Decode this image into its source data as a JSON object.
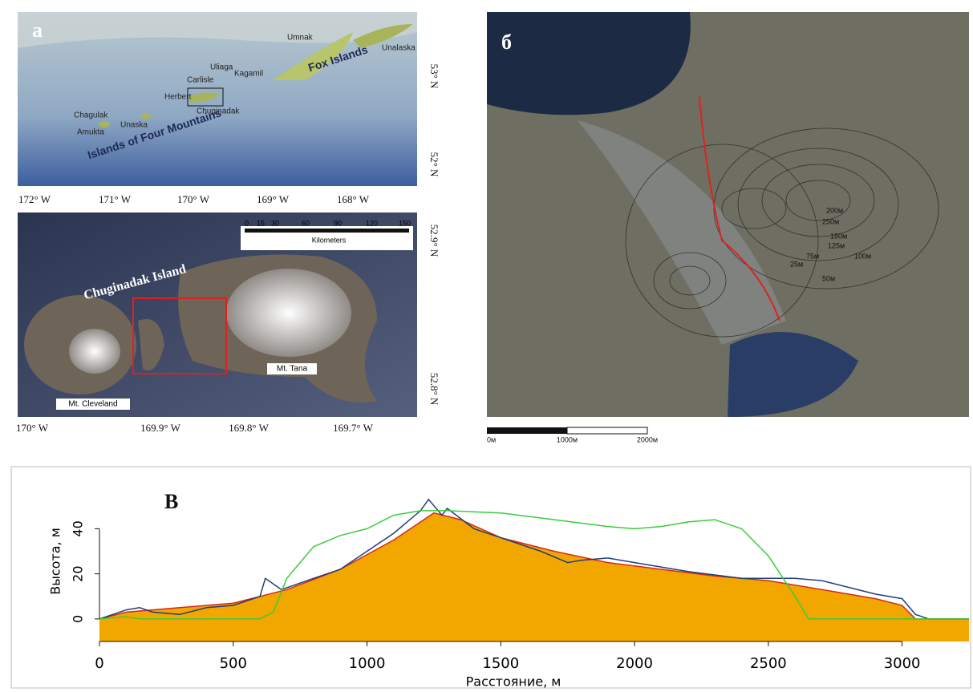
{
  "panels": {
    "a": {
      "label": "a",
      "islands": [
        "Umnak",
        "Unalaska",
        "Uliaga",
        "Kagamil",
        "Carlisle",
        "Herbert",
        "Chuginadak",
        "Chagulak",
        "Amukta",
        "Unaska"
      ],
      "groups": [
        "Fox Islands",
        "Islands of Four Mountains"
      ],
      "lon_ticks": [
        "172° W",
        "171° W",
        "170° W",
        "169° W",
        "168° W"
      ],
      "lat_ticks": [
        "53° N",
        "52° N"
      ],
      "inset": {
        "scale_ticks": [
          "0",
          "15",
          "30",
          "60",
          "90",
          "120",
          "150"
        ],
        "scale_unit": "Kilometers",
        "island": "Chuginadak Island",
        "volcanoes": [
          "Mt. Tana",
          "Mt. Cleveland"
        ],
        "lon_ticks": [
          "170° W",
          "169.9° W",
          "169.8° W",
          "169.7° W"
        ],
        "lat_ticks": [
          "52.9° N",
          "52.8° N"
        ]
      }
    },
    "b": {
      "label": "б",
      "scale_ticks": [
        "0м",
        "1000м",
        "2000м"
      ],
      "contours": [
        "25м",
        "50м",
        "75м",
        "100м",
        "125м",
        "150м",
        "200м",
        "250м"
      ]
    }
  },
  "chart_data": {
    "type": "area",
    "label": "В",
    "x_label": "Расстояние, м",
    "y_label": "Высота, м",
    "xlim": [
      0,
      3250
    ],
    "ylim": [
      -10,
      54
    ],
    "xticks": [
      0,
      500,
      1000,
      1500,
      2000,
      2500,
      3000
    ],
    "yticks": [
      0,
      20,
      40
    ],
    "series": [
      {
        "type": "area",
        "color": "#f2a600",
        "edge_color": "#d8281a",
        "x": [
          0,
          100,
          300,
          500,
          700,
          900,
          1100,
          1250,
          1350,
          1500,
          1700,
          1900,
          2100,
          2300,
          2500,
          2700,
          2900,
          3000,
          3050,
          3250
        ],
        "values": [
          0,
          3,
          5,
          7,
          13,
          22,
          35,
          47,
          44,
          36,
          30,
          25,
          22,
          19,
          17,
          13,
          9,
          6,
          0,
          0
        ]
      },
      {
        "type": "line",
        "color": "#1f3f7a",
        "x": [
          0,
          100,
          150,
          200,
          300,
          400,
          500,
          600,
          620,
          680,
          800,
          900,
          1000,
          1100,
          1200,
          1230,
          1280,
          1300,
          1400,
          1500,
          1650,
          1750,
          1800,
          1900,
          2000,
          2200,
          2400,
          2600,
          2700,
          2900,
          3000,
          3050,
          3100,
          3250
        ],
        "values": [
          0,
          4,
          5,
          3,
          2,
          5,
          6,
          10,
          18,
          13,
          18,
          22,
          30,
          38,
          48,
          53,
          46,
          49,
          40,
          36,
          30,
          25,
          26,
          27,
          25,
          21,
          18,
          18,
          17,
          11,
          9,
          2,
          0,
          0
        ]
      },
      {
        "type": "line",
        "color": "#3ccc3c",
        "x": [
          0,
          100,
          150,
          600,
          650,
          700,
          800,
          900,
          1000,
          1100,
          1200,
          1300,
          1500,
          1700,
          1900,
          2000,
          2100,
          2200,
          2300,
          2400,
          2500,
          2600,
          2650,
          3250
        ],
        "values": [
          0,
          1,
          0,
          0,
          3,
          18,
          32,
          37,
          40,
          46,
          48,
          48,
          47,
          44,
          41,
          40,
          41,
          43,
          44,
          40,
          28,
          10,
          0,
          0
        ]
      }
    ]
  }
}
